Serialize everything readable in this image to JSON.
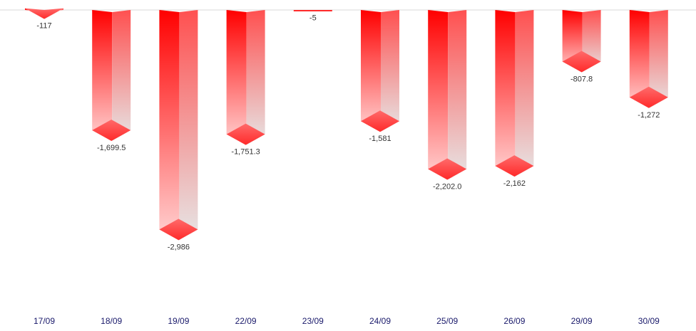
{
  "chart_data": {
    "type": "bar",
    "style": "3d-columns-negative",
    "categories": [
      "17/09",
      "18/09",
      "19/09",
      "22/09",
      "23/09",
      "24/09",
      "25/09",
      "26/09",
      "29/09",
      "30/09"
    ],
    "values": [
      -117,
      -1699.5,
      -2986,
      -1751.3,
      -5,
      -1581,
      -2202.0,
      -2162,
      -807.8,
      -1272
    ],
    "value_labels": [
      "-117",
      "-1,699.5",
      "-2,986",
      "-1,751.3",
      "-5",
      "-1,581",
      "-2,202.0",
      "-2,162",
      "-807.8",
      "-1,272"
    ],
    "ylim": [
      -3400,
      0
    ],
    "grid": false,
    "colors": {
      "bar_top": "#ff0000",
      "bar_fade": "#e6e6e6",
      "cap": "#ff3b3b",
      "axis_text": "#1a1a6b",
      "baseline": "#d9d9d9"
    }
  }
}
